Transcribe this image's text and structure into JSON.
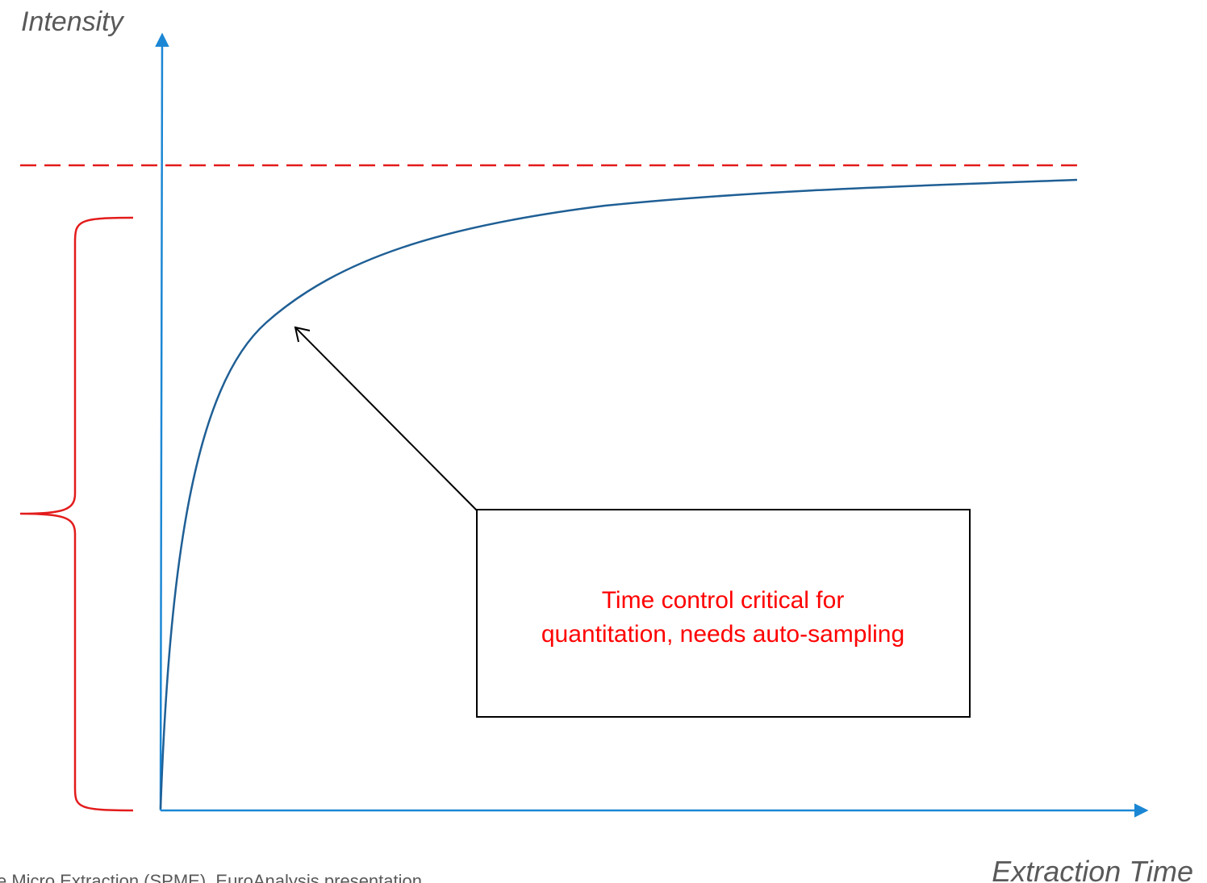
{
  "axes": {
    "y_label": "Intensity",
    "x_label": "Extraction Time"
  },
  "callout": {
    "lines": [
      "Time control critical for",
      "quantitation, needs auto-sampling"
    ]
  },
  "footer": "e Micro Extraction (SPME), EuroAnalysis presentation"
}
